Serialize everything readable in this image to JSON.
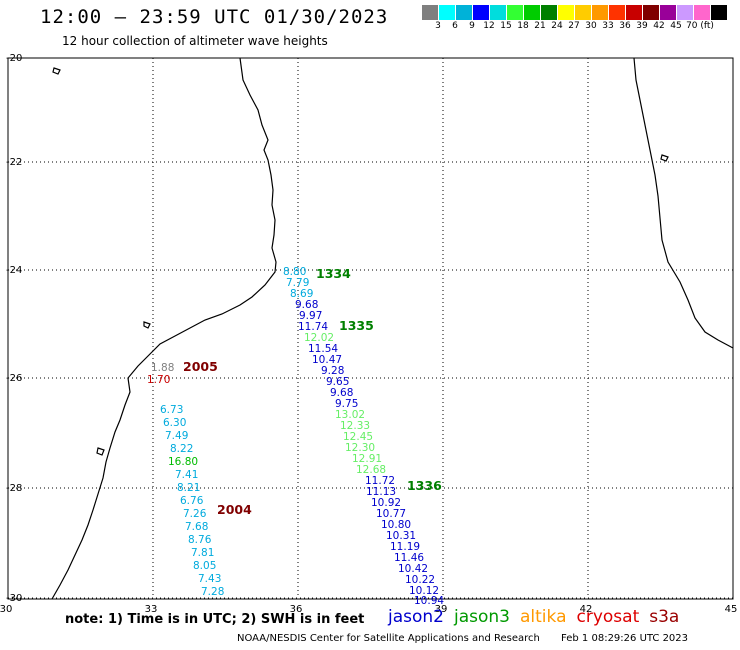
{
  "header": {
    "title": "12:00 – 23:59 UTC 01/30/2023",
    "subtitle": "12 hour collection of altimeter wave heights"
  },
  "legend": {
    "colors": [
      "#7f7f7f",
      "#00ffff",
      "#00b2d8",
      "#0000ff",
      "#00dddd",
      "#33ff33",
      "#00cc00",
      "#008000",
      "#ffff00",
      "#ffcc00",
      "#ff9900",
      "#ff3300",
      "#c80000",
      "#800000",
      "#990099",
      "#cc99ff",
      "#ff66cc",
      "#000000"
    ],
    "labels": [
      "3",
      "6",
      "9",
      "12",
      "15",
      "18",
      "21",
      "24",
      "27",
      "30",
      "33",
      "36",
      "39",
      "42",
      "45",
      "70 (ft)"
    ],
    "unit": "(ft)"
  },
  "axes": {
    "lat_labels": [
      "-20",
      "-22",
      "-24",
      "-26",
      "-28",
      "-30"
    ],
    "lon_labels": [
      "30",
      "33",
      "36",
      "39",
      "42",
      "45"
    ]
  },
  "tracks": [
    {
      "label": "1334",
      "color": "#008000"
    },
    {
      "label": "1335",
      "color": "#008000"
    },
    {
      "label": "1336",
      "color": "#008000"
    },
    {
      "label": "2005",
      "color": "#800000"
    },
    {
      "label": "2004",
      "color": "#800000"
    }
  ],
  "observations": [
    {
      "text": "8.80",
      "color": "#00aadd"
    },
    {
      "text": "7.79",
      "color": "#00aadd"
    },
    {
      "text": "8.69",
      "color": "#00aadd"
    },
    {
      "text": "9.68",
      "color": "#0000cc"
    },
    {
      "text": "9.97",
      "color": "#0000cc"
    },
    {
      "text": "11.74",
      "color": "#0000cc"
    },
    {
      "text": "12.02",
      "color": "#66ee66"
    },
    {
      "text": "11.54",
      "color": "#0000cc"
    },
    {
      "text": "10.47",
      "color": "#0000cc"
    },
    {
      "text": "9.28",
      "color": "#0000cc"
    },
    {
      "text": "9.65",
      "color": "#0000cc"
    },
    {
      "text": "9.68",
      "color": "#0000cc"
    },
    {
      "text": "9.75",
      "color": "#0000cc"
    },
    {
      "text": "13.02",
      "color": "#66ee66"
    },
    {
      "text": "12.33",
      "color": "#66ee66"
    },
    {
      "text": "12.45",
      "color": "#66ee66"
    },
    {
      "text": "12.30",
      "color": "#66ee66"
    },
    {
      "text": "12.91",
      "color": "#66ee66"
    },
    {
      "text": "12.68",
      "color": "#66ee66"
    },
    {
      "text": "11.72",
      "color": "#0000cc"
    },
    {
      "text": "11.13",
      "color": "#0000cc"
    },
    {
      "text": "10.92",
      "color": "#0000cc"
    },
    {
      "text": "10.77",
      "color": "#0000cc"
    },
    {
      "text": "10.80",
      "color": "#0000cc"
    },
    {
      "text": "10.31",
      "color": "#0000cc"
    },
    {
      "text": "11.19",
      "color": "#0000cc"
    },
    {
      "text": "11.46",
      "color": "#0000cc"
    },
    {
      "text": "10.42",
      "color": "#0000cc"
    },
    {
      "text": "10.22",
      "color": "#0000cc"
    },
    {
      "text": "10.12",
      "color": "#0000cc"
    },
    {
      "text": "10.94",
      "color": "#0000cc"
    },
    {
      "text": "1.88",
      "color": "#808080"
    },
    {
      "text": "1.70",
      "color": "#cc0000"
    },
    {
      "text": "6.73",
      "color": "#00aadd"
    },
    {
      "text": "6.30",
      "color": "#00aadd"
    },
    {
      "text": "7.49",
      "color": "#00aadd"
    },
    {
      "text": "8.22",
      "color": "#00aadd"
    },
    {
      "text": "16.80",
      "color": "#00bb00"
    },
    {
      "text": "7.41",
      "color": "#00aadd"
    },
    {
      "text": "8.21",
      "color": "#00aadd"
    },
    {
      "text": "6.76",
      "color": "#00aadd"
    },
    {
      "text": "7.26",
      "color": "#00aadd"
    },
    {
      "text": "7.68",
      "color": "#00aadd"
    },
    {
      "text": "8.76",
      "color": "#00aadd"
    },
    {
      "text": "7.81",
      "color": "#00aadd"
    },
    {
      "text": "8.05",
      "color": "#00aadd"
    },
    {
      "text": "7.43",
      "color": "#00aadd"
    },
    {
      "text": "7.28",
      "color": "#00aadd"
    }
  ],
  "note": "note: 1) Time is in UTC; 2) SWH is in feet",
  "satellites": [
    {
      "name": "jason2",
      "color": "#0000cc"
    },
    {
      "name": "jason3",
      "color": "#009900"
    },
    {
      "name": "altika",
      "color": "#ff9900"
    },
    {
      "name": "cryosat",
      "color": "#dd0000"
    },
    {
      "name": "s3a",
      "color": "#990000"
    }
  ],
  "footer": {
    "credit": "NOAA/NESDIS Center for Satellite Applications and Research",
    "timestamp": "Feb  1 08:29:26 UTC 2023"
  }
}
